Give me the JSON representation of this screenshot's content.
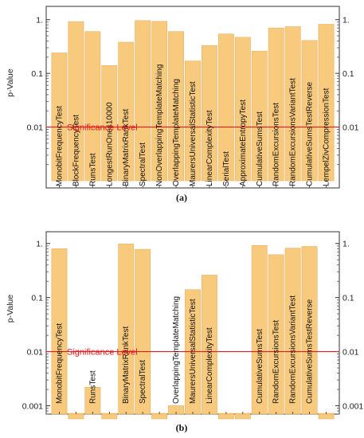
{
  "chart_data": [
    {
      "type": "bar",
      "caption": "(a)",
      "ylabel": "p-Value",
      "yscale": "log",
      "ylim": [
        0.001,
        1.3
      ],
      "yticks": [
        {
          "value": 1,
          "label": "1."
        },
        {
          "value": 0.1,
          "label": "0.1"
        },
        {
          "value": 0.01,
          "label": "0.01"
        }
      ],
      "significance": {
        "value": 0.01,
        "label": "Significance Level",
        "color": "#e41a1c"
      },
      "bar_color": "#f8c878",
      "categories": [
        "MonobitFrequencyTest",
        "BlockFrequencyTest",
        "RunsTest",
        "LongestRunOnes10000",
        "BinaryMatrixRankTest",
        "SpectralTest",
        "NonOverlappingTemplateMatching",
        "OverlappingTemplateMatching",
        "MaurersUniversalStatisticTest",
        "LinearComplexityTest",
        "SerialTest",
        "ApproximateEntropyTest",
        "CumulativeSumsTest",
        "RandomExcursionsTest",
        "RandomExcursionsVariantTest",
        "CumulativeSumsTestReverse",
        "LempelZivCompressionTest"
      ],
      "values": [
        0.24,
        0.92,
        0.6,
        0.14,
        0.38,
        0.96,
        0.93,
        0.6,
        0.17,
        0.33,
        0.54,
        0.47,
        0.26,
        0.7,
        0.74,
        0.41,
        0.82
      ]
    },
    {
      "type": "bar",
      "caption": "(b)",
      "ylabel": "p-Value",
      "yscale": "log",
      "ylim": [
        0.0007,
        1.3
      ],
      "yticks": [
        {
          "value": 1,
          "label": "1."
        },
        {
          "value": 0.1,
          "label": "0.1"
        },
        {
          "value": 0.01,
          "label": "0.01"
        },
        {
          "value": 0.001,
          "label": "0.001"
        }
      ],
      "significance": {
        "value": 0.01,
        "label": "Significance Level",
        "color": "#e41a1c"
      },
      "bar_color": "#f8c878",
      "categories": [
        "MonobitFrequencyTest",
        "",
        "RunsTest",
        "",
        "BinaryMatrixRankTest",
        "SpectralTest",
        "",
        "OverlappingTemplateMatching",
        "MaurersUniversalStatisticTest",
        "LinearComplexityTest",
        "",
        "",
        "CumulativeSumsTest",
        "RandomExcursionsTest",
        "RandomExcursionsVariantTest",
        "CumulativeSumsTestReverse",
        ""
      ],
      "values": [
        0.8,
        0.0007,
        0.0022,
        0.0007,
        0.98,
        0.78,
        0.0007,
        0.001,
        0.14,
        0.26,
        0.0007,
        0.0007,
        0.92,
        0.62,
        0.82,
        0.88,
        0.0007
      ]
    }
  ]
}
